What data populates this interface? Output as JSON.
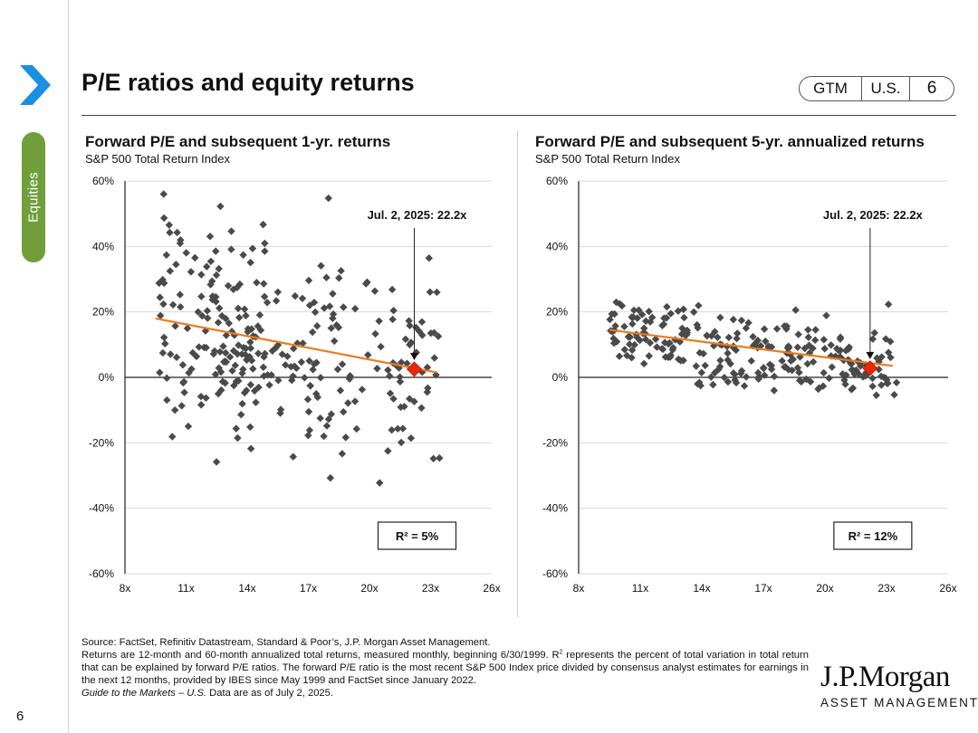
{
  "header": {
    "title": "P/E ratios and equity returns",
    "section_tab": "Equities",
    "badge": {
      "gtm": "GTM",
      "region": "U.S.",
      "page": "6"
    }
  },
  "colors": {
    "accent": "#6f9e3b",
    "chevron": "#1a8fe3",
    "marker": "#4a4a4a",
    "trend": "#ee7a1c",
    "highlight": "#e8280b"
  },
  "chart_data": [
    {
      "type": "scatter",
      "title": "Forward P/E and subsequent 1-yr. returns",
      "subtitle": "S&P 500 Total Return Index",
      "xlim": [
        8,
        26
      ],
      "ylim": [
        -60,
        60
      ],
      "x_ticks": [
        8,
        11,
        14,
        17,
        20,
        23,
        26
      ],
      "x_tick_labels": [
        "8x",
        "11x",
        "14x",
        "17x",
        "20x",
        "23x",
        "26x"
      ],
      "y_ticks": [
        60,
        40,
        20,
        0,
        -20,
        -40,
        -60
      ],
      "y_tick_labels": [
        "60%",
        "40%",
        "20%",
        "0%",
        "-20%",
        "-40%",
        "-60%"
      ],
      "highlight": {
        "x": 22.2,
        "y": 2.5,
        "label": "Jul. 2, 2025: 22.2x"
      },
      "trendline": [
        [
          9.5,
          18
        ],
        [
          23.3,
          1.5
        ]
      ],
      "r2_label": "R²  = 5%",
      "seed": 11,
      "n": 300,
      "slope": -1.2,
      "intercept": 29.5,
      "spread": 16
    },
    {
      "type": "scatter",
      "title": "Forward P/E and subsequent 5-yr. annualized returns",
      "subtitle": "S&P 500 Total Return Index",
      "xlim": [
        8,
        26
      ],
      "ylim": [
        -60,
        60
      ],
      "x_ticks": [
        8,
        11,
        14,
        17,
        20,
        23,
        26
      ],
      "x_tick_labels": [
        "8x",
        "11x",
        "14x",
        "17x",
        "20x",
        "23x",
        "26x"
      ],
      "y_ticks": [
        60,
        40,
        20,
        0,
        -20,
        -40,
        -60
      ],
      "y_tick_labels": [
        "60%",
        "40%",
        "20%",
        "0%",
        "-20%",
        "-40%",
        "-60%"
      ],
      "highlight": {
        "x": 22.2,
        "y": 2.8,
        "label": "Jul. 2, 2025: 22.2x"
      },
      "trendline": [
        [
          9.5,
          14.5
        ],
        [
          23.3,
          3.5
        ]
      ],
      "r2_label": "R²  = 12%",
      "seed": 7,
      "n": 260,
      "slope": -0.8,
      "intercept": 22,
      "spread": 5
    }
  ],
  "footer": {
    "source": "Source: FactSet, Refinitiv Datastream, Standard & Poor’s, J.P. Morgan Asset Management.",
    "note_part1": "Returns are 12-month and 60-month annualized total returns, measured monthly, beginning 6/30/1999. R",
    "note_sup": "2",
    "note_part2": " represents the percent of total variation in total return that can be explained by forward P/E ratios. The forward P/E ratio is the most recent S&P 500 Index price divided by consensus analyst estimates for earnings in the next 12 months, provided by IBES since May 1999 and FactSet since January 2022.",
    "guide_title": "Guide to the Markets – U.S.",
    "guide_rest": " Data are as of July 2, 2025."
  },
  "logo": {
    "line1": "J.P.Morgan",
    "line2": "ASSET MANAGEMENT"
  },
  "page_number": "6"
}
